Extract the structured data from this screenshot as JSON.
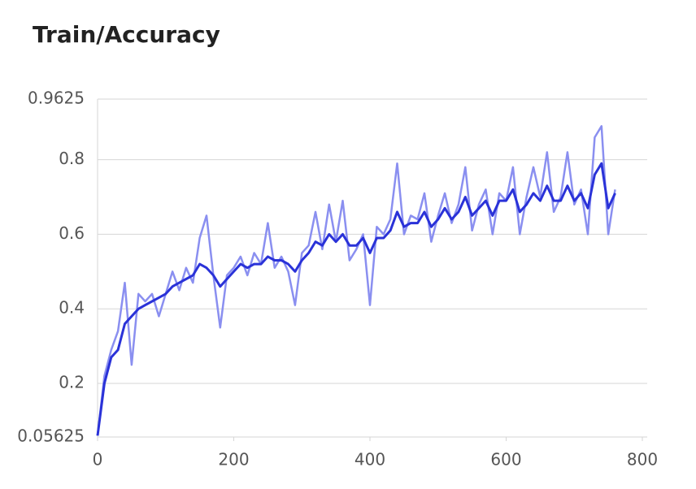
{
  "chart_data": {
    "type": "line",
    "title": "Train/Accuracy",
    "x": [
      0,
      10,
      20,
      30,
      40,
      50,
      60,
      70,
      80,
      90,
      100,
      110,
      120,
      130,
      140,
      150,
      160,
      170,
      180,
      190,
      200,
      210,
      220,
      230,
      240,
      250,
      260,
      270,
      280,
      290,
      300,
      310,
      320,
      330,
      340,
      350,
      360,
      370,
      380,
      390,
      400,
      410,
      420,
      430,
      440,
      450,
      460,
      470,
      480,
      490,
      500,
      510,
      520,
      530,
      540,
      550,
      560,
      570,
      580,
      590,
      600,
      610,
      620,
      630,
      640,
      650,
      660,
      670,
      680,
      690,
      700,
      710,
      720,
      730,
      740,
      750,
      760
    ],
    "series": [
      {
        "color": "#8a8ff0",
        "width": 2.5,
        "values": [
          0.06,
          0.22,
          0.29,
          0.34,
          0.47,
          0.25,
          0.44,
          0.42,
          0.44,
          0.38,
          0.44,
          0.5,
          0.45,
          0.51,
          0.47,
          0.59,
          0.65,
          0.49,
          0.35,
          0.49,
          0.51,
          0.54,
          0.49,
          0.55,
          0.52,
          0.63,
          0.51,
          0.54,
          0.5,
          0.41,
          0.55,
          0.57,
          0.66,
          0.56,
          0.68,
          0.58,
          0.69,
          0.53,
          0.56,
          0.6,
          0.41,
          0.62,
          0.6,
          0.64,
          0.79,
          0.6,
          0.65,
          0.64,
          0.71,
          0.58,
          0.65,
          0.71,
          0.63,
          0.68,
          0.78,
          0.61,
          0.68,
          0.72,
          0.6,
          0.71,
          0.69,
          0.78,
          0.6,
          0.7,
          0.78,
          0.7,
          0.82,
          0.66,
          0.7,
          0.82,
          0.68,
          0.72,
          0.6,
          0.86,
          0.89,
          0.6,
          0.72
        ]
      },
      {
        "color": "#2a32d8",
        "width": 3,
        "values": [
          0.06,
          0.2,
          0.27,
          0.29,
          0.36,
          0.38,
          0.4,
          0.41,
          0.42,
          0.43,
          0.44,
          0.46,
          0.47,
          0.48,
          0.49,
          0.52,
          0.51,
          0.49,
          0.46,
          0.48,
          0.5,
          0.52,
          0.51,
          0.52,
          0.52,
          0.54,
          0.53,
          0.53,
          0.52,
          0.5,
          0.53,
          0.55,
          0.58,
          0.57,
          0.6,
          0.58,
          0.6,
          0.57,
          0.57,
          0.59,
          0.55,
          0.59,
          0.59,
          0.61,
          0.66,
          0.62,
          0.63,
          0.63,
          0.66,
          0.62,
          0.64,
          0.67,
          0.64,
          0.66,
          0.7,
          0.65,
          0.67,
          0.69,
          0.65,
          0.69,
          0.69,
          0.72,
          0.66,
          0.68,
          0.71,
          0.69,
          0.73,
          0.69,
          0.69,
          0.73,
          0.69,
          0.71,
          0.67,
          0.76,
          0.79,
          0.67,
          0.71
        ]
      }
    ],
    "xlim": [
      0,
      800
    ],
    "xticks": [
      0,
      200,
      400,
      600,
      800
    ],
    "ylim": [
      0.05625,
      0.9625
    ],
    "yticks": [
      0.05625,
      0.2,
      0.4,
      0.6,
      0.8,
      0.9625
    ],
    "grid": true
  }
}
